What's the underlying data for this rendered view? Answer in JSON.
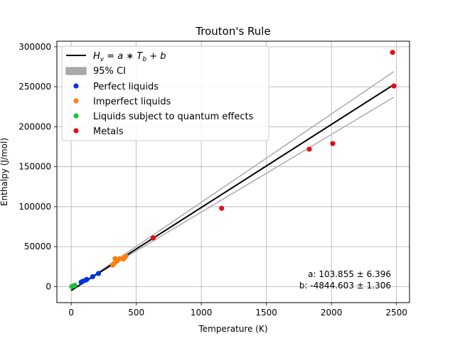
{
  "chart_data": {
    "type": "scatter",
    "title": "Trouton's Rule",
    "xlabel": "Temperature (K)",
    "ylabel": "Enthalpy (J/mol)",
    "xlim": [
      -110,
      2600
    ],
    "ylim": [
      -20000,
      307000
    ],
    "x_ticks": [
      0,
      500,
      1000,
      1500,
      2000,
      2500
    ],
    "x_tick_labels": [
      "0",
      "500",
      "1000",
      "1500",
      "2000",
      "2500"
    ],
    "y_ticks": [
      0,
      50000,
      100000,
      150000,
      200000,
      250000,
      300000
    ],
    "y_tick_labels": [
      "0",
      "50000",
      "100000",
      "150000",
      "200000",
      "250000",
      "300000"
    ],
    "grid": true,
    "legend_position": "top-left",
    "fit": {
      "label": "H_v = a * T_b + b",
      "a": 103.855,
      "b": -4844.603,
      "x_range": [
        0,
        2480
      ],
      "color": "#000000"
    },
    "ci": {
      "label": "95% CI",
      "lower": [
        [
          0,
          -4000
        ],
        [
          2480,
          237000
        ]
      ],
      "upper": [
        [
          0,
          -5000
        ],
        [
          2480,
          269000
        ]
      ],
      "color": "#aaaaaa"
    },
    "series": [
      {
        "name": "Perfect liquids",
        "color": "#0033e6",
        "points": [
          [
            77,
            5600
          ],
          [
            90,
            6800
          ],
          [
            112,
            8200
          ],
          [
            120,
            9000
          ],
          [
            165,
            12500
          ],
          [
            210,
            16500
          ]
        ]
      },
      {
        "name": "Imperfect liquids",
        "color": "#ff7f0e",
        "points": [
          [
            320,
            27000
          ],
          [
            330,
            29000
          ],
          [
            337,
            35000
          ],
          [
            352,
            32000
          ],
          [
            373,
            35000
          ],
          [
            400,
            34500
          ],
          [
            410,
            36000
          ],
          [
            420,
            38000
          ]
        ]
      },
      {
        "name": "Liquids subject to quantum effects",
        "color": "#1fbf3f",
        "points": [
          [
            4,
            100
          ],
          [
            20,
            900
          ],
          [
            27,
            1700
          ]
        ]
      },
      {
        "name": "Metals",
        "color": "#e0101a",
        "points": [
          [
            630,
            61000
          ],
          [
            1156,
            98000
          ],
          [
            1830,
            172000
          ],
          [
            2010,
            179000
          ],
          [
            2470,
            293000
          ],
          [
            2480,
            251000
          ]
        ]
      }
    ],
    "annotation": {
      "line1": "a: 103.855 ± 6.396",
      "line2": "b: -4844.603 ± 1.306"
    }
  }
}
